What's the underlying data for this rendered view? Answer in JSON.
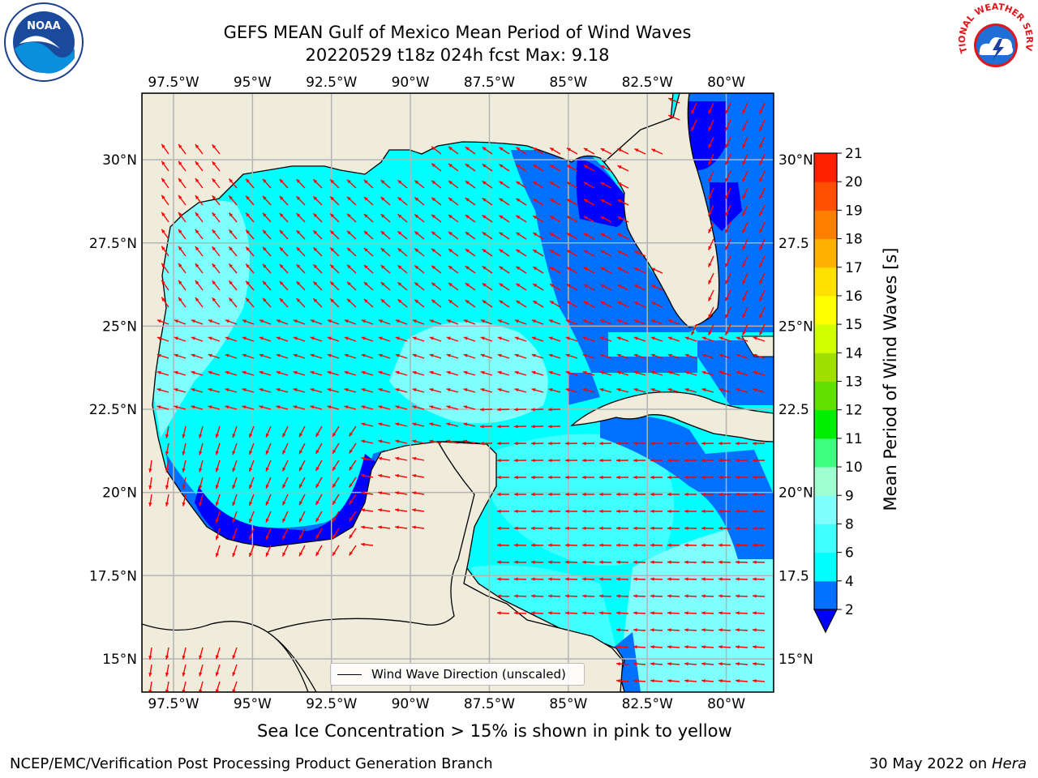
{
  "title_line1": "GEFS MEAN Gulf of Mexico Mean Period of Wind Waves",
  "title_line2": "20220529 t18z 024h fcst   Max: 9.18",
  "map": {
    "lon_range": [
      -98.5,
      -78.5
    ],
    "lat_range": [
      14.0,
      32.0
    ],
    "lon_ticks": [
      "97.5°W",
      "95°W",
      "92.5°W",
      "90°W",
      "87.5°W",
      "85°W",
      "82.5°W",
      "80°W"
    ],
    "lon_values": [
      -97.5,
      -95,
      -92.5,
      -90,
      -87.5,
      -85,
      -82.5,
      -80
    ],
    "lat_ticks": [
      "15°N",
      "17.5°N",
      "20°N",
      "22.5°N",
      "25°N",
      "27.5°N",
      "30°N"
    ],
    "lat_ticks_right": [
      "15°N",
      "17.5",
      "20°N",
      "22.5",
      "25°N",
      "27.5",
      "30°N"
    ],
    "lat_values": [
      15,
      17.5,
      20,
      22.5,
      25,
      27.5,
      30
    ],
    "land_color": "#efecdc",
    "ocean_base_color": "#00ffff",
    "arrow_color": "#ff0000"
  },
  "colorbar": {
    "label": "Mean Period of Wind Waves [s]",
    "ticks": [
      "2",
      "4",
      "6",
      "8",
      "9",
      "10",
      "11",
      "12",
      "13",
      "14",
      "15",
      "16",
      "17",
      "18",
      "19",
      "20",
      "21"
    ],
    "colors": [
      "#0070ff",
      "#00ffff",
      "#40ffff",
      "#80ffff",
      "#a0ffd0",
      "#40ff80",
      "#00ee00",
      "#60e000",
      "#a0e000",
      "#d0ff00",
      "#ffff00",
      "#ffe000",
      "#ffb000",
      "#ff8000",
      "#ff5000",
      "#ff2000"
    ],
    "extend_color": "#0000ff"
  },
  "legend_label": "Wind Wave Direction (unscaled)",
  "note": "Sea Ice Concentration > 15% is shown in pink to yellow",
  "credit": "NCEP/EMC/Verification Post Processing Product Generation Branch",
  "date": "30 May 2022 on",
  "date_machine": "Hera",
  "logos": {
    "noaa_text": "NOAA",
    "nws_text": "NATIONAL WEATHER SERVICE"
  }
}
